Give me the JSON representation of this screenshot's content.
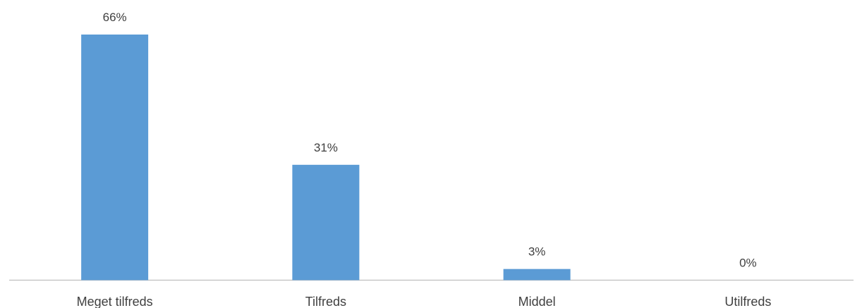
{
  "chart_data": {
    "type": "bar",
    "categories": [
      "Meget tilfreds",
      "Tilfreds",
      "Middel",
      "Utilfreds"
    ],
    "values": [
      66,
      31,
      3,
      0
    ],
    "value_labels": [
      "66%",
      "31%",
      "3%",
      "0%"
    ],
    "ylim": [
      0,
      70
    ],
    "grid": false,
    "legend": "none",
    "colors": {
      "bar": "#5B9BD5",
      "axis": "#BFBFBF",
      "text": "#404040"
    }
  }
}
